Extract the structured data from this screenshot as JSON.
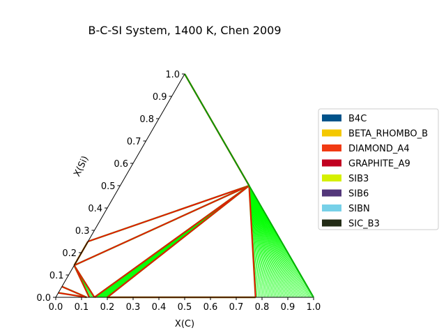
{
  "chart_data": {
    "type": "ternary",
    "title": "B-C-SI System, 1400 K, Chen 2009",
    "xlabel": "X(C)",
    "ylabel": "X(Si)",
    "xlim": [
      0,
      1
    ],
    "ylim": [
      0,
      1
    ],
    "xticks": [
      "0.0",
      "0.1",
      "0.2",
      "0.3",
      "0.4",
      "0.5",
      "0.6",
      "0.7",
      "0.8",
      "0.9",
      "1.0"
    ],
    "yticks": [
      "0.0",
      "0.1",
      "0.2",
      "0.3",
      "0.4",
      "0.5",
      "0.6",
      "0.7",
      "0.8",
      "0.9",
      "1.0"
    ],
    "legend_position": "right",
    "legend": [
      {
        "name": "B4C",
        "color": "#00538a"
      },
      {
        "name": "BETA_RHOMBO_B",
        "color": "#f4c800"
      },
      {
        "name": "DIAMOND_A4",
        "color": "#f13a13"
      },
      {
        "name": "GRAPHITE_A9",
        "color": "#c10020"
      },
      {
        "name": "SIB3",
        "color": "#d5f000"
      },
      {
        "name": "SIB6",
        "color": "#53377a"
      },
      {
        "name": "SIBN",
        "color": "#76d0e8"
      },
      {
        "name": "SIC_B3",
        "color": "#232c16"
      }
    ],
    "phase_boundaries": [
      {
        "from": [
          0.5,
          0.5
        ],
        "to": [
          0.0,
          0.25
        ],
        "color": "#ff0000"
      },
      {
        "from": [
          0.5,
          0.5
        ],
        "to": [
          0.0,
          0.143
        ],
        "color": "#ff0000"
      },
      {
        "from": [
          0.0,
          0.143
        ],
        "to": [
          0.0,
          0.25
        ],
        "color": "#ff0000"
      },
      {
        "from": [
          0.0,
          0.143
        ],
        "to": [
          0.13,
          0.0
        ],
        "color": "#ff0000"
      },
      {
        "from": [
          0.0,
          0.143
        ],
        "to": [
          0.15,
          0.0
        ],
        "color": "#ff0000"
      },
      {
        "from": [
          0.5,
          0.5
        ],
        "to": [
          0.15,
          0.0
        ],
        "color": "#ff0000"
      },
      {
        "from": [
          0.5,
          0.5
        ],
        "to": [
          0.2,
          0.0
        ],
        "color": "#ff0000"
      },
      {
        "from": [
          0.5,
          0.5
        ],
        "to": [
          0.775,
          0.0
        ],
        "color": "#ff0000"
      },
      {
        "from": [
          0.5,
          0.5
        ],
        "to": [
          0.0,
          1.0
        ],
        "color": "#ff0000"
      },
      {
        "from": [
          0.2,
          0.0
        ],
        "to": [
          0.775,
          0.0
        ],
        "color": "#ff0000"
      },
      {
        "from": [
          0.0,
          0.048
        ],
        "to": [
          0.12,
          0.0
        ],
        "color": "#ff0000"
      },
      {
        "from": [
          0.0,
          0.02
        ],
        "to": [
          0.12,
          0.0
        ],
        "color": "#ff0000"
      }
    ],
    "tie_line_fans": [
      {
        "apex": [
          0.5,
          0.5
        ],
        "from": [
          0.775,
          0.0
        ],
        "to": [
          1.0,
          0.0
        ],
        "count": 40,
        "color": "#00ff00"
      },
      {
        "apex": [
          0.5,
          0.5
        ],
        "from": [
          0.15,
          0.0
        ],
        "to": [
          0.2,
          0.0
        ],
        "count": 14,
        "color": "#00ff00"
      },
      {
        "apex": [
          0.0,
          0.143
        ],
        "from": [
          0.13,
          0.0
        ],
        "to": [
          0.15,
          0.0
        ],
        "count": 6,
        "color": "#00ff00"
      },
      {
        "apex": [
          0.0,
          0.048
        ],
        "from": [
          0.12,
          0.0
        ],
        "to": [
          0.12,
          0.0
        ],
        "count": 1,
        "color": "#00ff00"
      }
    ]
  }
}
